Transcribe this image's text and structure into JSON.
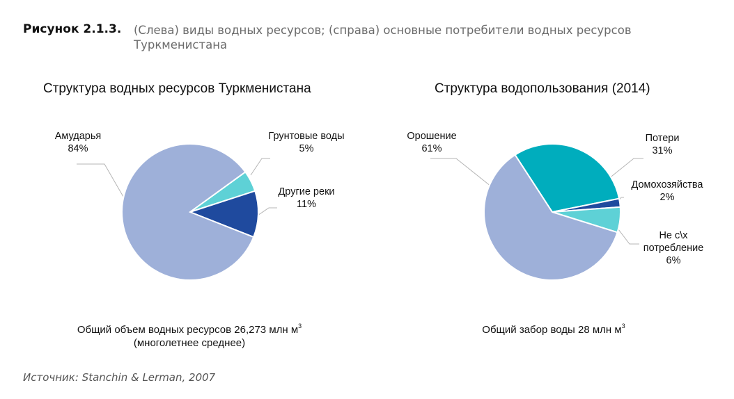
{
  "figure": {
    "label": "Рисунок 2.1.3.",
    "caption": "(Слева) виды водных ресурсов; (справа) основные потребители водных ресурсов Туркменистана",
    "source": "Источник: Stanchin & Lerman, 2007"
  },
  "chart_data": [
    {
      "type": "pie",
      "title": "Структура водных ресурсов Туркменистана",
      "slices": [
        {
          "name": "Амударья",
          "value": 84,
          "label": "84%",
          "color": "#9eb0d9"
        },
        {
          "name": "Грунтовые воды",
          "value": 5,
          "label": "5%",
          "color": "#5ed1d6"
        },
        {
          "name": "Другие реки",
          "value": 11,
          "label": "11%",
          "color": "#1f4a9e"
        }
      ],
      "note_main": "Общий объем водных ресурсов 26,273 млн м",
      "note_sup": "3",
      "note_sub": "(многолетнее среднее)"
    },
    {
      "type": "pie",
      "title": "Структура водопользования (2014)",
      "slices": [
        {
          "name": "Орошение",
          "value": 61,
          "label": "61%",
          "color": "#9eb0d9"
        },
        {
          "name": "Потери",
          "value": 31,
          "label": "31%",
          "color": "#00adbd"
        },
        {
          "name": "Домохозяйства",
          "value": 2,
          "label": "2%",
          "color": "#1f4a9e"
        },
        {
          "name": "Не с\\х потребление",
          "value": 6,
          "label": "6%",
          "color": "#5ed1d6"
        }
      ],
      "note_main": "Общий забор воды 28 млн м",
      "note_sup": "3"
    }
  ]
}
